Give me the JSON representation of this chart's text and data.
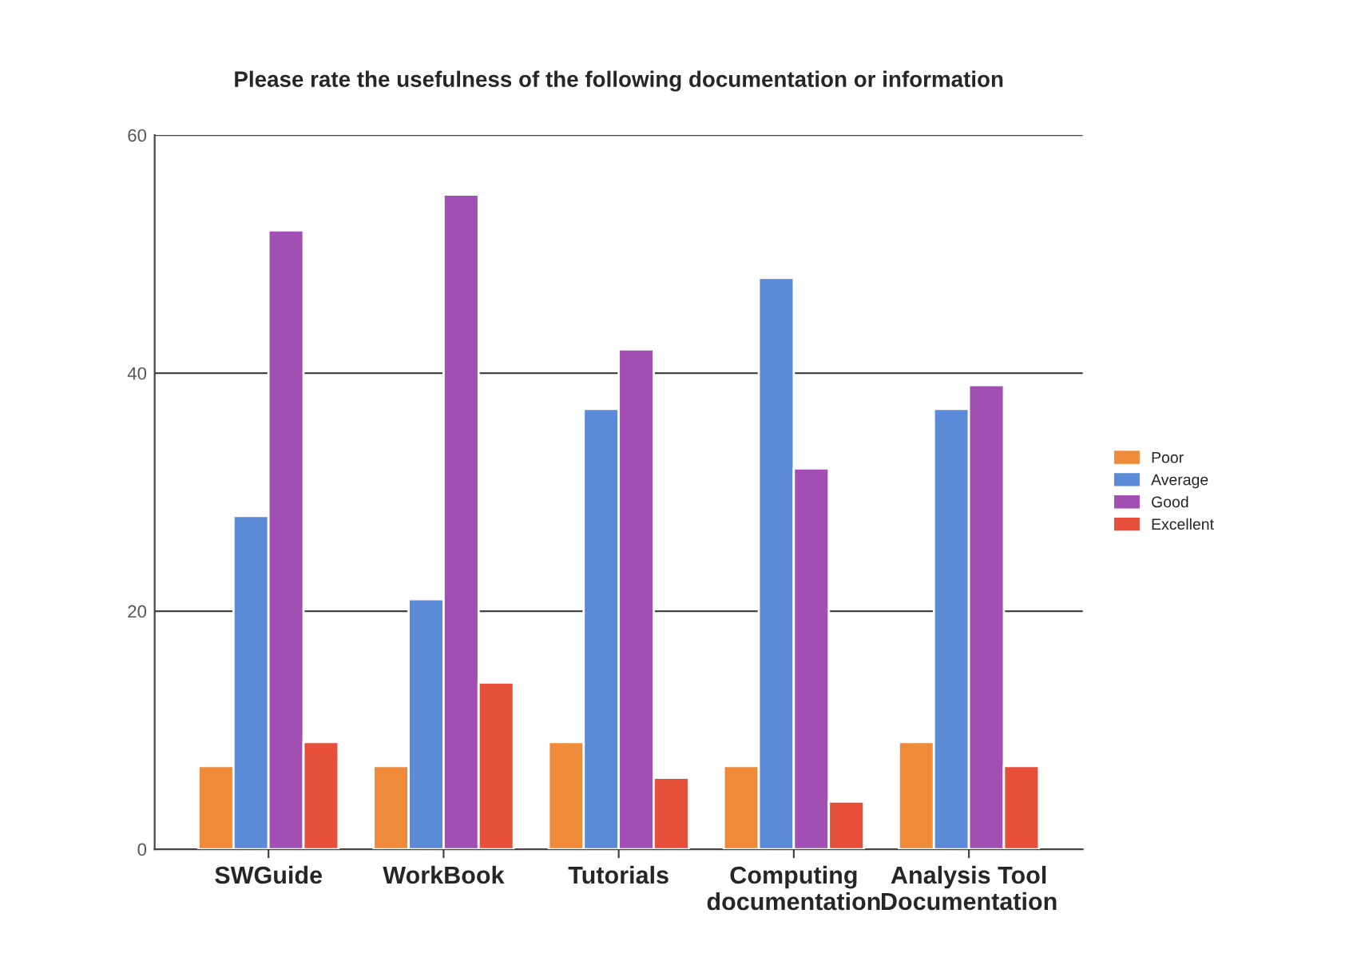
{
  "chart_data": {
    "type": "bar",
    "title": "Please rate the usefulness of the following documentation or information",
    "categories": [
      "SWGuide",
      "WorkBook",
      "Tutorials",
      "Computing\ndocumentation",
      "Analysis Tool\nDocumentation"
    ],
    "series": [
      {
        "name": "Poor",
        "color": "#ef8a3a",
        "values": [
          7,
          7,
          9,
          7,
          9
        ]
      },
      {
        "name": "Average",
        "color": "#5b8bd6",
        "values": [
          28,
          21,
          37,
          48,
          37
        ]
      },
      {
        "name": "Good",
        "color": "#a24fb4",
        "values": [
          52,
          55,
          42,
          32,
          39
        ]
      },
      {
        "name": "Excellent",
        "color": "#e6503b",
        "values": [
          9,
          14,
          6,
          4,
          7
        ]
      }
    ],
    "ylim": [
      0,
      60
    ],
    "yticks": [
      0,
      20,
      40,
      60
    ],
    "grid": "y",
    "legend": "right"
  }
}
